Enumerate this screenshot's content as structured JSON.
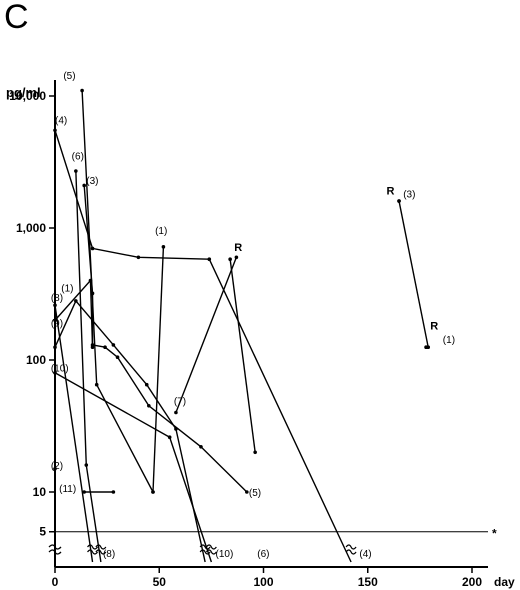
{
  "panel_letter": "C",
  "chart_data": {
    "type": "line",
    "title": "",
    "xlabel": "day",
    "ylabel": "pg/ml",
    "xlim": [
      0,
      210
    ],
    "ylim": [
      5,
      15000
    ],
    "yscale": "log",
    "grid": false,
    "legend": "none",
    "x_ticks": [
      0,
      50,
      100,
      150,
      200
    ],
    "x_tick_labels": [
      "0",
      "50",
      "100",
      "150",
      "200"
    ],
    "y_ticks": [
      5,
      10,
      100,
      1000,
      10000
    ],
    "y_tick_labels": [
      "5",
      "10",
      "100",
      "1,000",
      "10,000"
    ],
    "detection_limit": {
      "y": 5,
      "label": "*"
    },
    "below_limit_value": 3.6,
    "series": [
      {
        "label": "(1)",
        "points": [
          [
            0,
            125
          ],
          [
            10,
            280
          ],
          [
            28,
            130
          ],
          [
            44,
            65
          ],
          [
            58,
            30
          ],
          [
            72,
            2.4
          ]
        ]
      },
      {
        "label": "(1)",
        "points": [
          [
            47,
            10
          ],
          [
            52,
            720
          ]
        ]
      },
      {
        "label": "R",
        "points": [
          [
            84,
            580
          ],
          [
            96,
            20
          ]
        ]
      },
      {
        "label": "(1)",
        "points": [
          [
            178,
            125
          ]
        ]
      },
      {
        "label": "R",
        "points": [
          [
            178,
            125
          ]
        ]
      },
      {
        "label": "(2)",
        "points": [
          [
            0,
            15
          ],
          [
            0,
            3.6
          ]
        ]
      },
      {
        "label": "(3)",
        "points": [
          [
            14,
            2100
          ],
          [
            18,
            320
          ],
          [
            18,
            130
          ],
          [
            24,
            125
          ],
          [
            30,
            105
          ],
          [
            45,
            45
          ],
          [
            70,
            22
          ],
          [
            92,
            10
          ]
        ]
      },
      {
        "label": "(3)",
        "points": [
          [
            165,
            1600
          ],
          [
            179,
            125
          ]
        ]
      },
      {
        "label": "R",
        "points": [
          [
            165,
            1600
          ]
        ]
      },
      {
        "label": "(4)",
        "points": [
          [
            0,
            5500
          ],
          [
            18,
            700
          ],
          [
            40,
            600
          ],
          [
            74,
            580
          ],
          [
            142,
            3.6
          ]
        ]
      },
      {
        "label": "(5)",
        "points": [
          [
            13,
            11000
          ],
          [
            20,
            65
          ],
          [
            47,
            10
          ]
        ]
      },
      {
        "label": "(6)",
        "points": [
          [
            10,
            2700
          ],
          [
            15,
            16
          ],
          [
            22,
            3.6
          ]
        ]
      },
      {
        "label": "(7)",
        "points": [
          [
            58,
            40
          ],
          [
            87,
            600
          ]
        ]
      },
      {
        "label": "(8)",
        "points": [
          [
            0,
            260
          ],
          [
            18,
            3.6
          ]
        ]
      },
      {
        "label": "(9)",
        "points": [
          [
            0,
            200
          ],
          [
            17,
            400
          ],
          [
            18,
            125
          ]
        ]
      },
      {
        "label": "(10)",
        "points": [
          [
            0,
            80
          ],
          [
            55,
            26
          ],
          [
            75,
            3.6
          ]
        ]
      },
      {
        "label": "(11)",
        "points": [
          [
            14,
            10
          ],
          [
            28,
            10
          ]
        ]
      }
    ],
    "labels": [
      {
        "text": "(5)",
        "at": [
          4,
          13500
        ]
      },
      {
        "text": "(4)",
        "at": [
          0,
          6200
        ]
      },
      {
        "text": "(6)",
        "at": [
          8,
          3300
        ]
      },
      {
        "text": "(3)",
        "at": [
          15,
          2150
        ]
      },
      {
        "text": "(1)",
        "at": [
          48,
          900
        ]
      },
      {
        "text": "R",
        "at": [
          86,
          670
        ]
      },
      {
        "text": "(8)",
        "at": [
          -2,
          280
        ]
      },
      {
        "text": "(1)",
        "at": [
          3,
          330
        ]
      },
      {
        "text": "(9)",
        "at": [
          -2,
          180
        ]
      },
      {
        "text": "(10)",
        "at": [
          -2,
          82
        ]
      },
      {
        "text": "(7)",
        "at": [
          57,
          46
        ]
      },
      {
        "text": "(2)",
        "at": [
          -2,
          15
        ]
      },
      {
        "text": "(11)",
        "at": [
          2,
          10
        ]
      },
      {
        "text": "(5)",
        "at": [
          93,
          9.3
        ]
      },
      {
        "text": "R",
        "at": [
          159,
          1800
        ]
      },
      {
        "text": "(3)",
        "at": [
          167,
          1700
        ]
      },
      {
        "text": "R",
        "at": [
          180,
          170
        ]
      },
      {
        "text": "(1)",
        "at": [
          186,
          135
        ]
      },
      {
        "text": "(8)",
        "at": [
          23,
          3.3
        ]
      },
      {
        "text": "(10)",
        "at": [
          77,
          3.3
        ]
      },
      {
        "text": "(6)",
        "at": [
          97,
          3.3
        ]
      },
      {
        "text": "(4)",
        "at": [
          146,
          3.3
        ]
      }
    ]
  }
}
